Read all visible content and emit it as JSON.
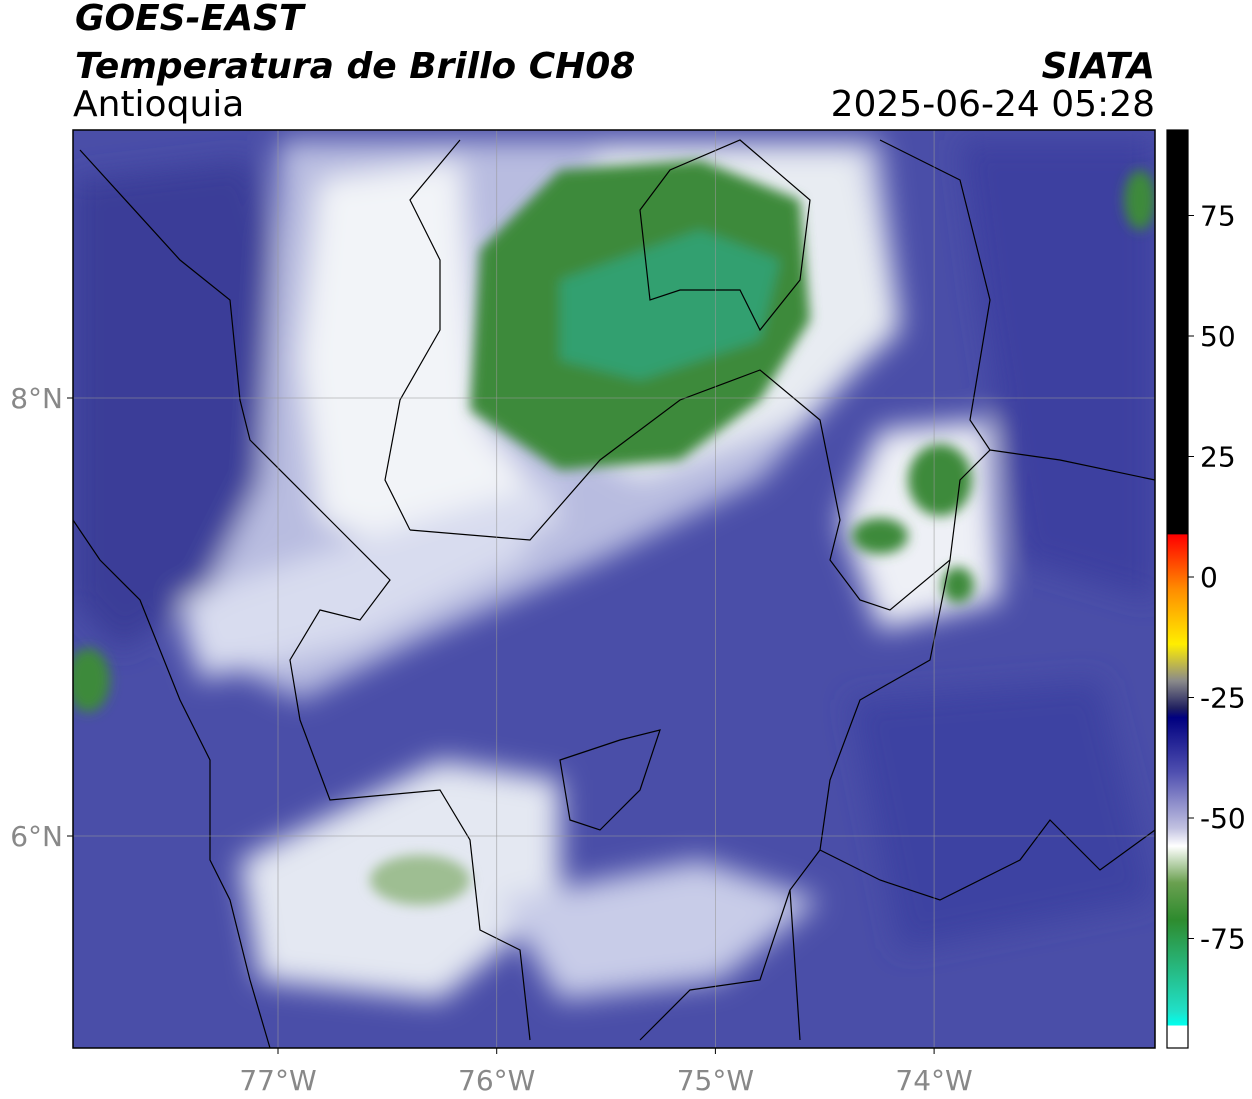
{
  "header": {
    "title": "GOES-EAST",
    "subtitle": "Temperatura de Brillo CH08",
    "region": "Antioquia",
    "agency": "SIATA",
    "datetime": "2025-06-24 05:28"
  },
  "map": {
    "lat_ticks": [
      {
        "value": 8,
        "label": "8°N"
      },
      {
        "value": 6,
        "label": "6°N"
      }
    ],
    "lon_ticks": [
      {
        "value": -77,
        "label": "77°W"
      },
      {
        "value": -76,
        "label": "76°W"
      },
      {
        "value": -75,
        "label": "75°W"
      },
      {
        "value": -74,
        "label": "74°W"
      }
    ],
    "colorbar_ticks": [
      75,
      50,
      25,
      0,
      -25,
      -50,
      -75
    ]
  }
}
